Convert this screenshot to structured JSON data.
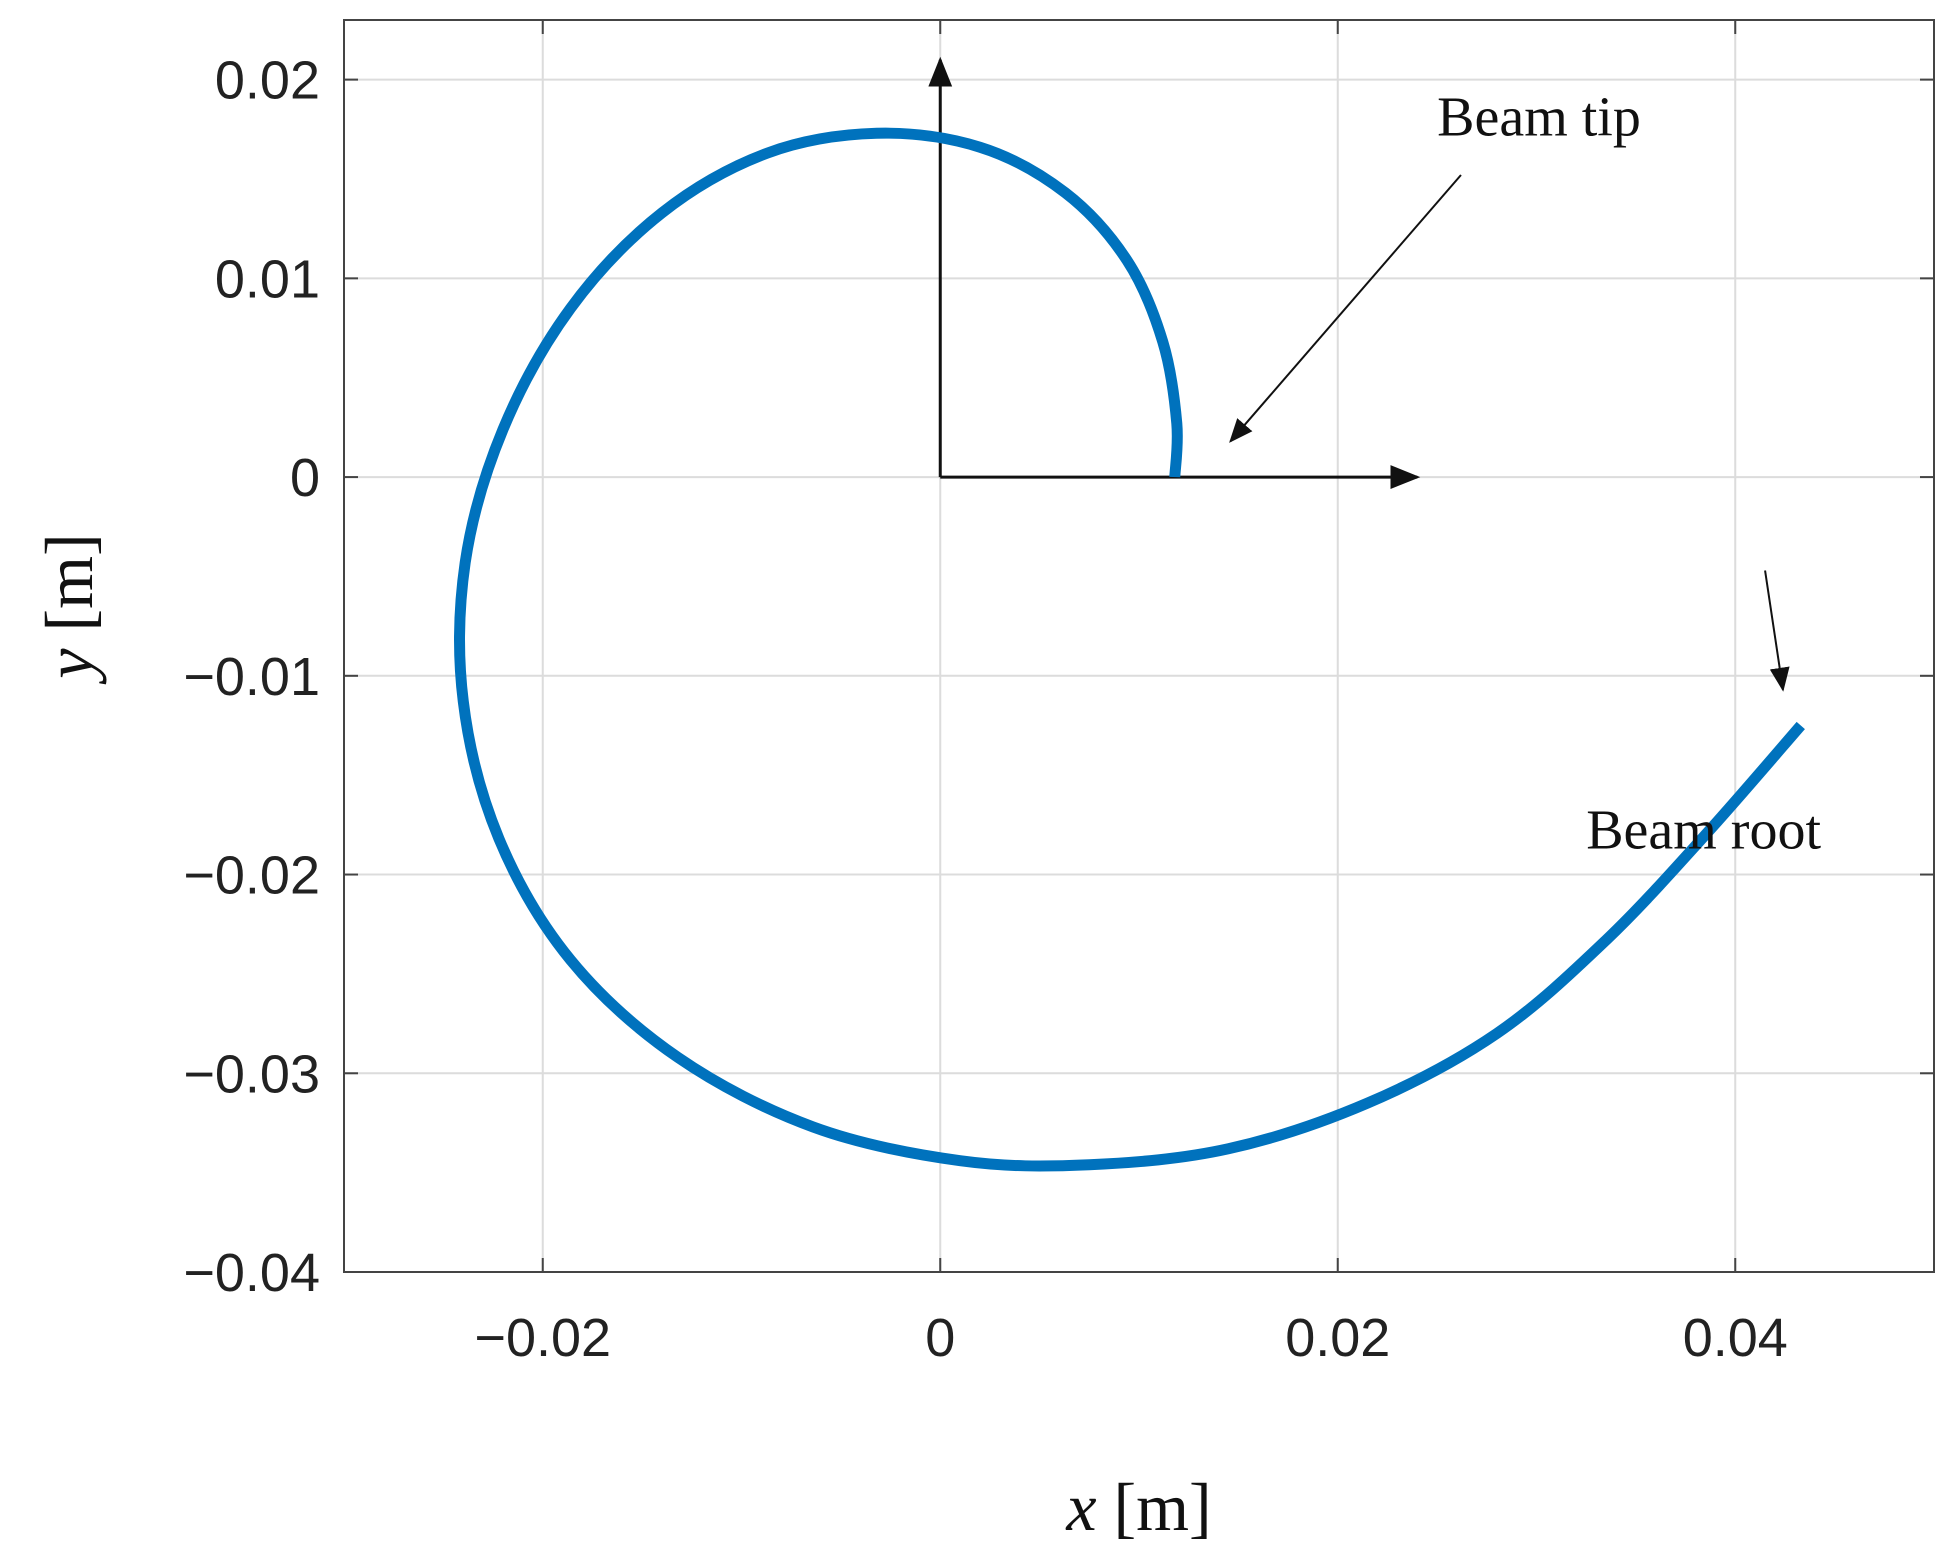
{
  "chart_data": {
    "type": "line",
    "xlabel": {
      "var": "x",
      "unit": "[m]"
    },
    "ylabel": {
      "var": "y",
      "unit": "[m]"
    },
    "xlim": [
      -0.03,
      0.05
    ],
    "ylim": [
      -0.04,
      0.023
    ],
    "x_ticks": [
      -0.02,
      0,
      0.02,
      0.04
    ],
    "x_tick_labels": [
      "−0.02",
      "0",
      "0.02",
      "0.04"
    ],
    "y_ticks": [
      0.02,
      0.01,
      0,
      -0.01,
      -0.02,
      -0.03,
      -0.04
    ],
    "y_tick_labels": [
      "0.02",
      "0.01",
      "0",
      "−0.01",
      "−0.02",
      "−0.03",
      "−0.04"
    ],
    "grid": true,
    "series": [
      {
        "color": "#0072bd",
        "points": [
          [
            0.0118,
            0.0
          ],
          [
            0.0119,
            0.0027
          ],
          [
            0.0112,
            0.0068
          ],
          [
            0.0094,
            0.0109
          ],
          [
            0.0063,
            0.0143
          ],
          [
            0.002,
            0.0166
          ],
          [
            -0.0032,
            0.0173
          ],
          [
            -0.0087,
            0.0163
          ],
          [
            -0.014,
            0.0133
          ],
          [
            -0.0186,
            0.0085
          ],
          [
            -0.022,
            0.0024
          ],
          [
            -0.0239,
            -0.0043
          ],
          [
            -0.024,
            -0.0113
          ],
          [
            -0.0222,
            -0.0182
          ],
          [
            -0.0186,
            -0.0243
          ],
          [
            -0.0132,
            -0.0292
          ],
          [
            -0.0064,
            -0.0327
          ],
          [
            0.001,
            -0.0344
          ],
          [
            0.0075,
            -0.0346
          ],
          [
            0.0145,
            -0.0338
          ],
          [
            0.0215,
            -0.0315
          ],
          [
            0.028,
            -0.028
          ],
          [
            0.0335,
            -0.0233
          ],
          [
            0.0385,
            -0.018
          ],
          [
            0.0433,
            -0.0125
          ]
        ]
      }
    ],
    "annotations": [
      {
        "text": "Beam tip",
        "anchor": [
          0.025,
          0.0172
        ],
        "arrow_from": [
          0.0262,
          0.0152
        ],
        "arrow_to": [
          0.0146,
          0.0018
        ]
      },
      {
        "text": "Beam root",
        "anchor": [
          0.0325,
          -0.0187
        ],
        "arrow_from": [
          0.0415,
          -0.0047
        ],
        "arrow_to": [
          0.0424,
          -0.0107
        ]
      }
    ],
    "reference_axes": {
      "origin": [
        0,
        0
      ],
      "x_arrow_to": [
        0.024,
        0
      ],
      "y_arrow_to": [
        0,
        0.021
      ]
    }
  }
}
